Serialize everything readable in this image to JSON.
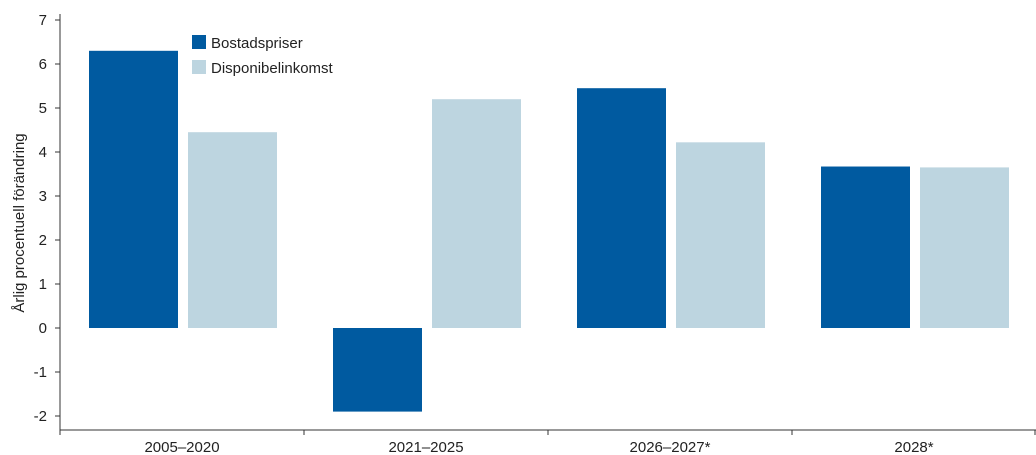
{
  "chart_data": {
    "type": "bar",
    "categories": [
      "2005–2020",
      "2021–2025",
      "2026–2027*",
      "2028*"
    ],
    "series": [
      {
        "name": "Bostadspriser",
        "color": "#005AA0",
        "values": [
          6.3,
          -1.9,
          5.45,
          3.67
        ]
      },
      {
        "name": "Disponibelinkomst",
        "color": "#BDD5E0",
        "values": [
          4.45,
          5.2,
          4.22,
          3.65
        ]
      }
    ],
    "xlabel": "",
    "ylabel": "Årlig procentuell förändring",
    "ylim": [
      -2,
      7
    ],
    "yticks": [
      -2,
      -1,
      0,
      1,
      2,
      3,
      4,
      5,
      6,
      7
    ],
    "grid": false,
    "legend_position": "top-left"
  }
}
